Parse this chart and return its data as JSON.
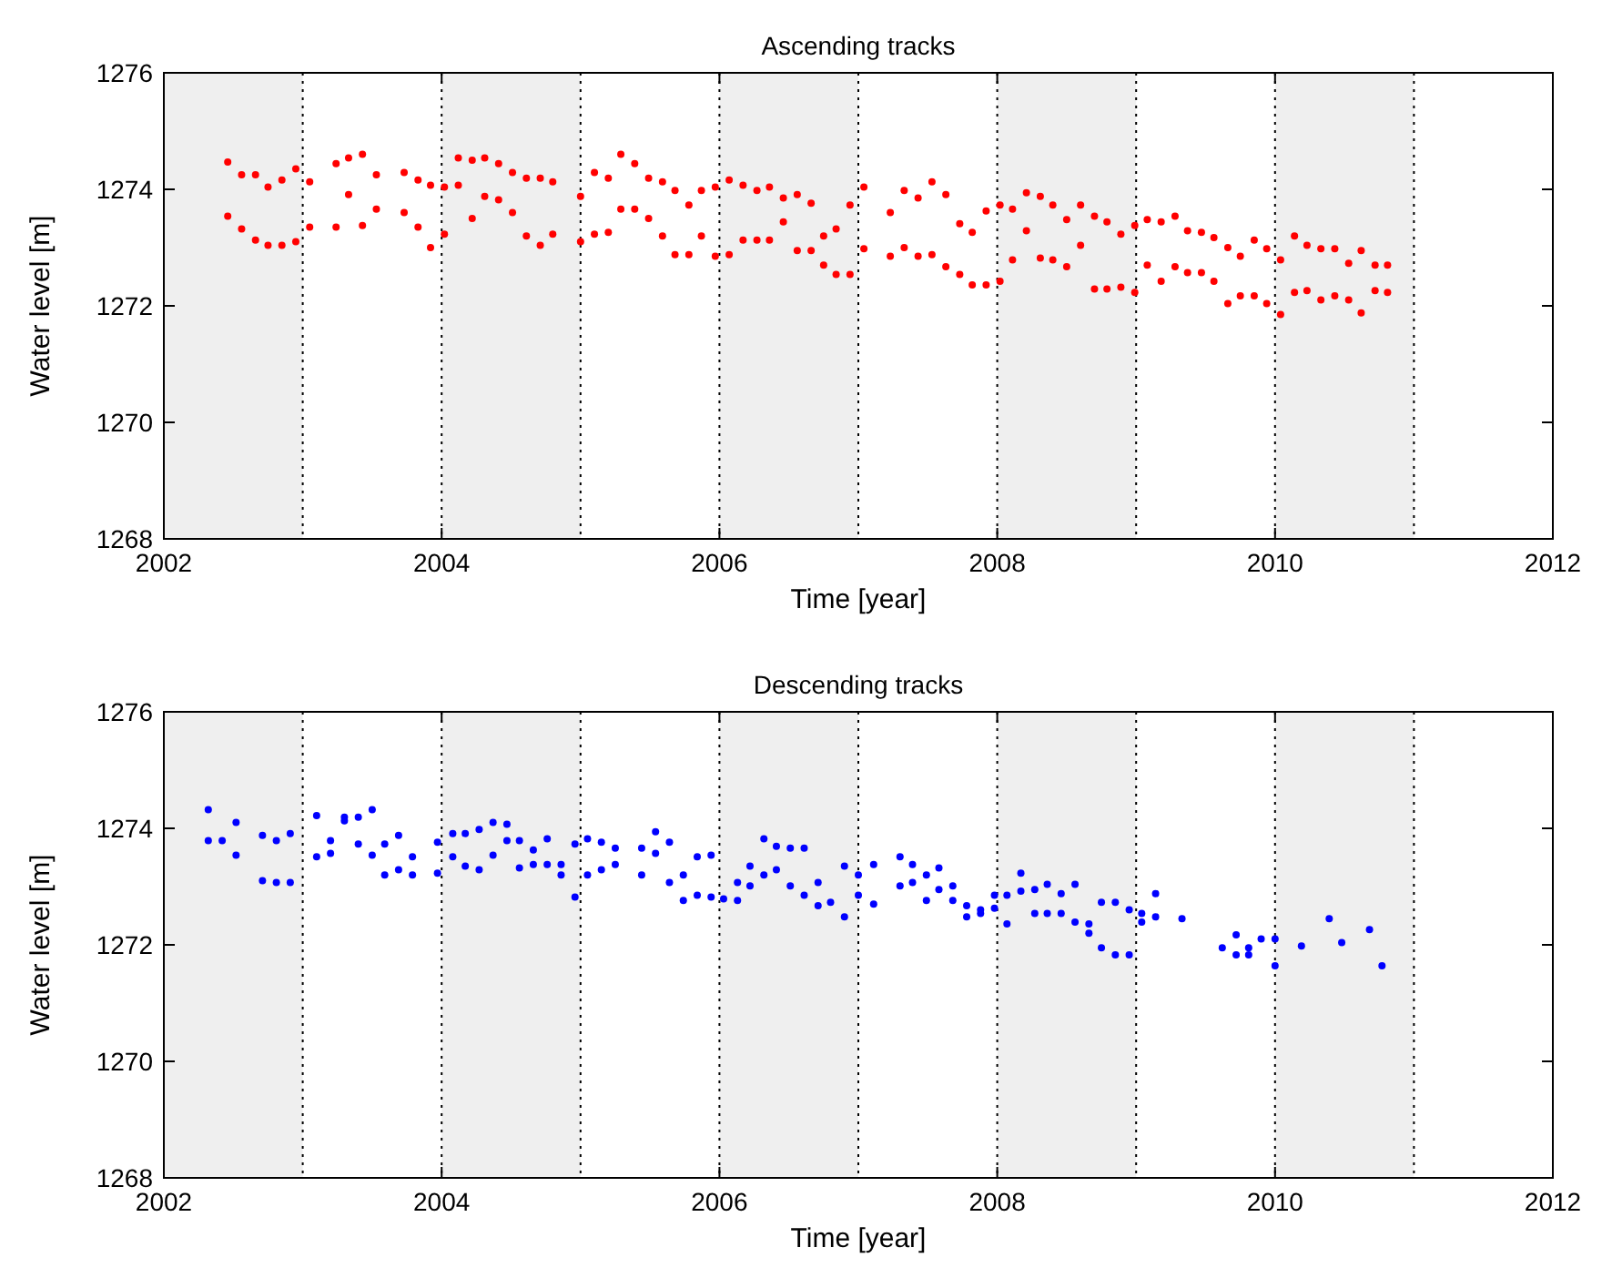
{
  "chart_data": [
    {
      "type": "scatter",
      "title": "Ascending tracks",
      "xlabel": "Time [year]",
      "ylabel": "Water level [m]",
      "xlim": [
        2002,
        2012
      ],
      "xticks": [
        2002,
        2004,
        2006,
        2008,
        2010,
        2012
      ],
      "ylim": [
        1268,
        1276
      ],
      "yticks": [
        1268,
        1270,
        1272,
        1274,
        1276
      ],
      "grid": false,
      "marker": "circle",
      "bands": [
        {
          "axis": "x",
          "from": 2002,
          "to": 2003,
          "color": "#efefef"
        },
        {
          "axis": "x",
          "from": 2004,
          "to": 2005,
          "color": "#efefef"
        },
        {
          "axis": "x",
          "from": 2006,
          "to": 2007,
          "color": "#efefef"
        },
        {
          "axis": "x",
          "from": 2008,
          "to": 2009,
          "color": "#efefef"
        },
        {
          "axis": "x",
          "from": 2010,
          "to": 2011,
          "color": "#efefef"
        }
      ],
      "ref_lines": [
        {
          "axis": "x",
          "value": 2003,
          "color": "#000000",
          "line_style": "dotted"
        },
        {
          "axis": "x",
          "value": 2004,
          "color": "#000000",
          "line_style": "dotted"
        },
        {
          "axis": "x",
          "value": 2005,
          "color": "#000000",
          "line_style": "dotted"
        },
        {
          "axis": "x",
          "value": 2006,
          "color": "#000000",
          "line_style": "dotted"
        },
        {
          "axis": "x",
          "value": 2007,
          "color": "#000000",
          "line_style": "dotted"
        },
        {
          "axis": "x",
          "value": 2008,
          "color": "#000000",
          "line_style": "dotted"
        },
        {
          "axis": "x",
          "value": 2009,
          "color": "#000000",
          "line_style": "dotted"
        },
        {
          "axis": "x",
          "value": 2010,
          "color": "#000000",
          "line_style": "dotted"
        },
        {
          "axis": "x",
          "value": 2011,
          "color": "#000000",
          "line_style": "dotted"
        }
      ],
      "series": [
        {
          "color": "#ff0000",
          "x": [
            2002.46,
            2002.46,
            2002.56,
            2002.56,
            2002.66,
            2002.66,
            2002.75,
            2002.75,
            2002.85,
            2002.85,
            2002.95,
            2002.95,
            2003.05,
            2003.05,
            2003.24,
            2003.24,
            2003.33,
            2003.33,
            2003.43,
            2003.43,
            2003.53,
            2003.53,
            2003.73,
            2003.73,
            2003.83,
            2003.83,
            2003.92,
            2003.92,
            2004.02,
            2004.02,
            2004.12,
            2004.12,
            2004.22,
            2004.22,
            2004.31,
            2004.31,
            2004.41,
            2004.41,
            2004.51,
            2004.51,
            2004.61,
            2004.61,
            2004.71,
            2004.71,
            2004.8,
            2004.8,
            2005.0,
            2005.0,
            2005.1,
            2005.1,
            2005.2,
            2005.2,
            2005.29,
            2005.29,
            2005.39,
            2005.39,
            2005.49,
            2005.49,
            2005.59,
            2005.59,
            2005.68,
            2005.68,
            2005.78,
            2005.78,
            2005.87,
            2005.87,
            2005.97,
            2005.97,
            2006.07,
            2006.07,
            2006.17,
            2006.17,
            2006.27,
            2006.27,
            2006.36,
            2006.36,
            2006.46,
            2006.46,
            2006.56,
            2006.56,
            2006.66,
            2006.66,
            2006.75,
            2006.75,
            2006.84,
            2006.84,
            2006.94,
            2006.94,
            2007.04,
            2007.04,
            2007.23,
            2007.23,
            2007.33,
            2007.33,
            2007.43,
            2007.43,
            2007.53,
            2007.53,
            2007.63,
            2007.63,
            2007.73,
            2007.73,
            2007.82,
            2007.82,
            2007.92,
            2007.92,
            2008.02,
            2008.02,
            2008.11,
            2008.11,
            2008.21,
            2008.21,
            2008.31,
            2008.31,
            2008.4,
            2008.4,
            2008.5,
            2008.5,
            2008.6,
            2008.6,
            2008.7,
            2008.7,
            2008.79,
            2008.79,
            2008.89,
            2008.89,
            2008.99,
            2008.99,
            2009.08,
            2009.08,
            2009.18,
            2009.18,
            2009.28,
            2009.28,
            2009.37,
            2009.37,
            2009.47,
            2009.47,
            2009.56,
            2009.56,
            2009.66,
            2009.66,
            2009.75,
            2009.75,
            2009.85,
            2009.85,
            2009.94,
            2009.94,
            2010.04,
            2010.04,
            2010.14,
            2010.14,
            2010.23,
            2010.23,
            2010.33,
            2010.33,
            2010.43,
            2010.43,
            2010.53,
            2010.53,
            2010.62,
            2010.62,
            2010.72,
            2010.72,
            2010.81,
            2010.81
          ],
          "values": [
            1274.47,
            1273.54,
            1274.25,
            1273.32,
            1274.25,
            1273.13,
            1274.04,
            1273.04,
            1274.16,
            1273.04,
            1274.35,
            1273.1,
            1274.13,
            1273.35,
            1274.44,
            1273.35,
            1274.54,
            1273.91,
            1274.6,
            1273.38,
            1274.25,
            1273.66,
            1274.29,
            1273.6,
            1274.16,
            1273.35,
            1274.07,
            1273.0,
            1274.04,
            1273.23,
            1274.54,
            1274.07,
            1274.5,
            1273.5,
            1274.54,
            1273.88,
            1274.44,
            1273.82,
            1274.29,
            1273.6,
            1274.19,
            1273.2,
            1274.19,
            1273.04,
            1274.13,
            1273.23,
            1273.88,
            1273.1,
            1274.29,
            1273.23,
            1274.19,
            1273.26,
            1274.6,
            1273.66,
            1274.44,
            1273.66,
            1274.19,
            1273.5,
            1274.13,
            1273.2,
            1273.98,
            1272.88,
            1273.73,
            1272.88,
            1273.98,
            1273.2,
            1274.04,
            1272.85,
            1274.16,
            1272.88,
            1274.07,
            1273.13,
            1273.98,
            1273.13,
            1274.04,
            1273.13,
            1273.85,
            1273.44,
            1273.91,
            1272.95,
            1273.76,
            1272.95,
            1273.2,
            1272.7,
            1273.32,
            1272.54,
            1273.73,
            1272.54,
            1274.04,
            1272.98,
            1273.6,
            1272.85,
            1273.98,
            1273.0,
            1273.85,
            1272.85,
            1274.13,
            1272.88,
            1273.91,
            1272.67,
            1273.41,
            1272.54,
            1273.26,
            1272.36,
            1273.63,
            1272.36,
            1273.73,
            1272.42,
            1273.66,
            1272.79,
            1273.94,
            1273.29,
            1273.88,
            1272.82,
            1273.73,
            1272.79,
            1273.48,
            1272.67,
            1273.73,
            1273.04,
            1273.54,
            1272.29,
            1273.44,
            1272.29,
            1273.23,
            1272.32,
            1273.38,
            1272.23,
            1273.48,
            1272.7,
            1273.44,
            1272.42,
            1273.54,
            1272.67,
            1273.29,
            1272.57,
            1273.26,
            1272.57,
            1273.17,
            1272.42,
            1273.0,
            1272.04,
            1272.85,
            1272.17,
            1273.13,
            1272.17,
            1272.98,
            1272.04,
            1272.79,
            1271.85,
            1273.2,
            1272.23,
            1273.04,
            1272.26,
            1272.98,
            1272.1,
            1272.98,
            1272.17,
            1272.73,
            1272.1,
            1272.95,
            1271.88,
            1272.7,
            1272.26,
            1272.7,
            1272.23
          ]
        }
      ]
    },
    {
      "type": "scatter",
      "title": "Descending tracks",
      "xlabel": "Time [year]",
      "ylabel": "Water level [m]",
      "xlim": [
        2002,
        2012
      ],
      "xticks": [
        2002,
        2004,
        2006,
        2008,
        2010,
        2012
      ],
      "ylim": [
        1268,
        1276
      ],
      "yticks": [
        1268,
        1270,
        1272,
        1274,
        1276
      ],
      "grid": false,
      "marker": "circle",
      "bands": [
        {
          "axis": "x",
          "from": 2002,
          "to": 2003,
          "color": "#efefef"
        },
        {
          "axis": "x",
          "from": 2004,
          "to": 2005,
          "color": "#efefef"
        },
        {
          "axis": "x",
          "from": 2006,
          "to": 2007,
          "color": "#efefef"
        },
        {
          "axis": "x",
          "from": 2008,
          "to": 2009,
          "color": "#efefef"
        },
        {
          "axis": "x",
          "from": 2010,
          "to": 2011,
          "color": "#efefef"
        }
      ],
      "ref_lines": [
        {
          "axis": "x",
          "value": 2003,
          "color": "#000000",
          "line_style": "dotted"
        },
        {
          "axis": "x",
          "value": 2004,
          "color": "#000000",
          "line_style": "dotted"
        },
        {
          "axis": "x",
          "value": 2005,
          "color": "#000000",
          "line_style": "dotted"
        },
        {
          "axis": "x",
          "value": 2006,
          "color": "#000000",
          "line_style": "dotted"
        },
        {
          "axis": "x",
          "value": 2007,
          "color": "#000000",
          "line_style": "dotted"
        },
        {
          "axis": "x",
          "value": 2008,
          "color": "#000000",
          "line_style": "dotted"
        },
        {
          "axis": "x",
          "value": 2009,
          "color": "#000000",
          "line_style": "dotted"
        },
        {
          "axis": "x",
          "value": 2010,
          "color": "#000000",
          "line_style": "dotted"
        },
        {
          "axis": "x",
          "value": 2011,
          "color": "#000000",
          "line_style": "dotted"
        }
      ],
      "series": [
        {
          "color": "#0000ff",
          "x": [
            2002.32,
            2002.32,
            2002.42,
            2002.52,
            2002.52,
            2002.71,
            2002.71,
            2002.81,
            2002.81,
            2002.91,
            2002.91,
            2003.1,
            2003.1,
            2003.2,
            2003.2,
            2003.3,
            2003.3,
            2003.4,
            2003.4,
            2003.5,
            2003.5,
            2003.59,
            2003.59,
            2003.69,
            2003.69,
            2003.79,
            2003.79,
            2003.97,
            2003.97,
            2004.08,
            2004.08,
            2004.17,
            2004.17,
            2004.27,
            2004.27,
            2004.37,
            2004.37,
            2004.47,
            2004.47,
            2004.56,
            2004.56,
            2004.66,
            2004.66,
            2004.76,
            2004.76,
            2004.86,
            2004.86,
            2004.96,
            2004.96,
            2005.05,
            2005.05,
            2005.15,
            2005.15,
            2005.25,
            2005.25,
            2005.44,
            2005.44,
            2005.54,
            2005.54,
            2005.64,
            2005.64,
            2005.74,
            2005.74,
            2005.84,
            2005.84,
            2005.94,
            2005.94,
            2006.03,
            2006.13,
            2006.13,
            2006.22,
            2006.22,
            2006.32,
            2006.32,
            2006.41,
            2006.41,
            2006.51,
            2006.51,
            2006.61,
            2006.61,
            2006.71,
            2006.71,
            2006.8,
            2006.9,
            2006.9,
            2007.0,
            2007.0,
            2007.11,
            2007.11,
            2007.3,
            2007.3,
            2007.39,
            2007.39,
            2007.49,
            2007.49,
            2007.58,
            2007.58,
            2007.68,
            2007.68,
            2007.78,
            2007.78,
            2007.88,
            2007.88,
            2007.98,
            2007.98,
            2008.07,
            2008.07,
            2008.17,
            2008.17,
            2008.27,
            2008.27,
            2008.36,
            2008.36,
            2008.46,
            2008.46,
            2008.56,
            2008.56,
            2008.66,
            2008.66,
            2008.75,
            2008.75,
            2008.85,
            2008.85,
            2008.95,
            2008.95,
            2009.04,
            2009.04,
            2009.14,
            2009.14,
            2009.33,
            2009.62,
            2009.72,
            2009.72,
            2009.81,
            2009.81,
            2009.9,
            2010.0,
            2010.0,
            2010.19,
            2010.39,
            2010.48,
            2010.68,
            2010.77
          ],
          "values": [
            1274.32,
            1273.79,
            1273.79,
            1274.1,
            1273.54,
            1273.88,
            1273.1,
            1273.79,
            1273.07,
            1273.91,
            1273.07,
            1274.22,
            1273.51,
            1273.79,
            1273.57,
            1274.19,
            1274.13,
            1274.19,
            1273.73,
            1274.32,
            1273.54,
            1273.73,
            1273.2,
            1273.88,
            1273.29,
            1273.51,
            1273.2,
            1273.76,
            1273.23,
            1273.91,
            1273.51,
            1273.91,
            1273.35,
            1273.98,
            1273.29,
            1274.1,
            1273.54,
            1274.07,
            1273.79,
            1273.79,
            1273.32,
            1273.63,
            1273.38,
            1273.82,
            1273.38,
            1273.38,
            1273.2,
            1273.73,
            1272.82,
            1273.82,
            1273.2,
            1273.76,
            1273.29,
            1273.66,
            1273.38,
            1273.66,
            1273.2,
            1273.94,
            1273.57,
            1273.76,
            1273.07,
            1273.2,
            1272.76,
            1273.51,
            1272.85,
            1273.54,
            1272.82,
            1272.79,
            1273.07,
            1272.76,
            1273.35,
            1273.01,
            1273.82,
            1273.2,
            1273.69,
            1273.29,
            1273.66,
            1273.01,
            1273.66,
            1272.85,
            1273.07,
            1272.67,
            1272.73,
            1273.35,
            1272.48,
            1273.2,
            1272.85,
            1273.38,
            1272.7,
            1273.51,
            1273.01,
            1273.38,
            1273.07,
            1273.2,
            1272.76,
            1273.32,
            1272.95,
            1273.01,
            1272.76,
            1272.67,
            1272.48,
            1272.6,
            1272.54,
            1272.85,
            1272.63,
            1272.85,
            1272.36,
            1273.23,
            1272.92,
            1272.95,
            1272.54,
            1273.04,
            1272.54,
            1272.88,
            1272.54,
            1273.04,
            1272.39,
            1272.36,
            1272.2,
            1272.73,
            1271.95,
            1272.73,
            1271.83,
            1272.6,
            1271.83,
            1272.54,
            1272.39,
            1272.88,
            1272.48,
            1272.45,
            1271.95,
            1272.17,
            1271.83,
            1271.95,
            1271.83,
            1272.1,
            1272.1,
            1271.64,
            1271.98,
            1272.45,
            1272.04,
            1272.26,
            1271.64
          ]
        }
      ]
    }
  ]
}
